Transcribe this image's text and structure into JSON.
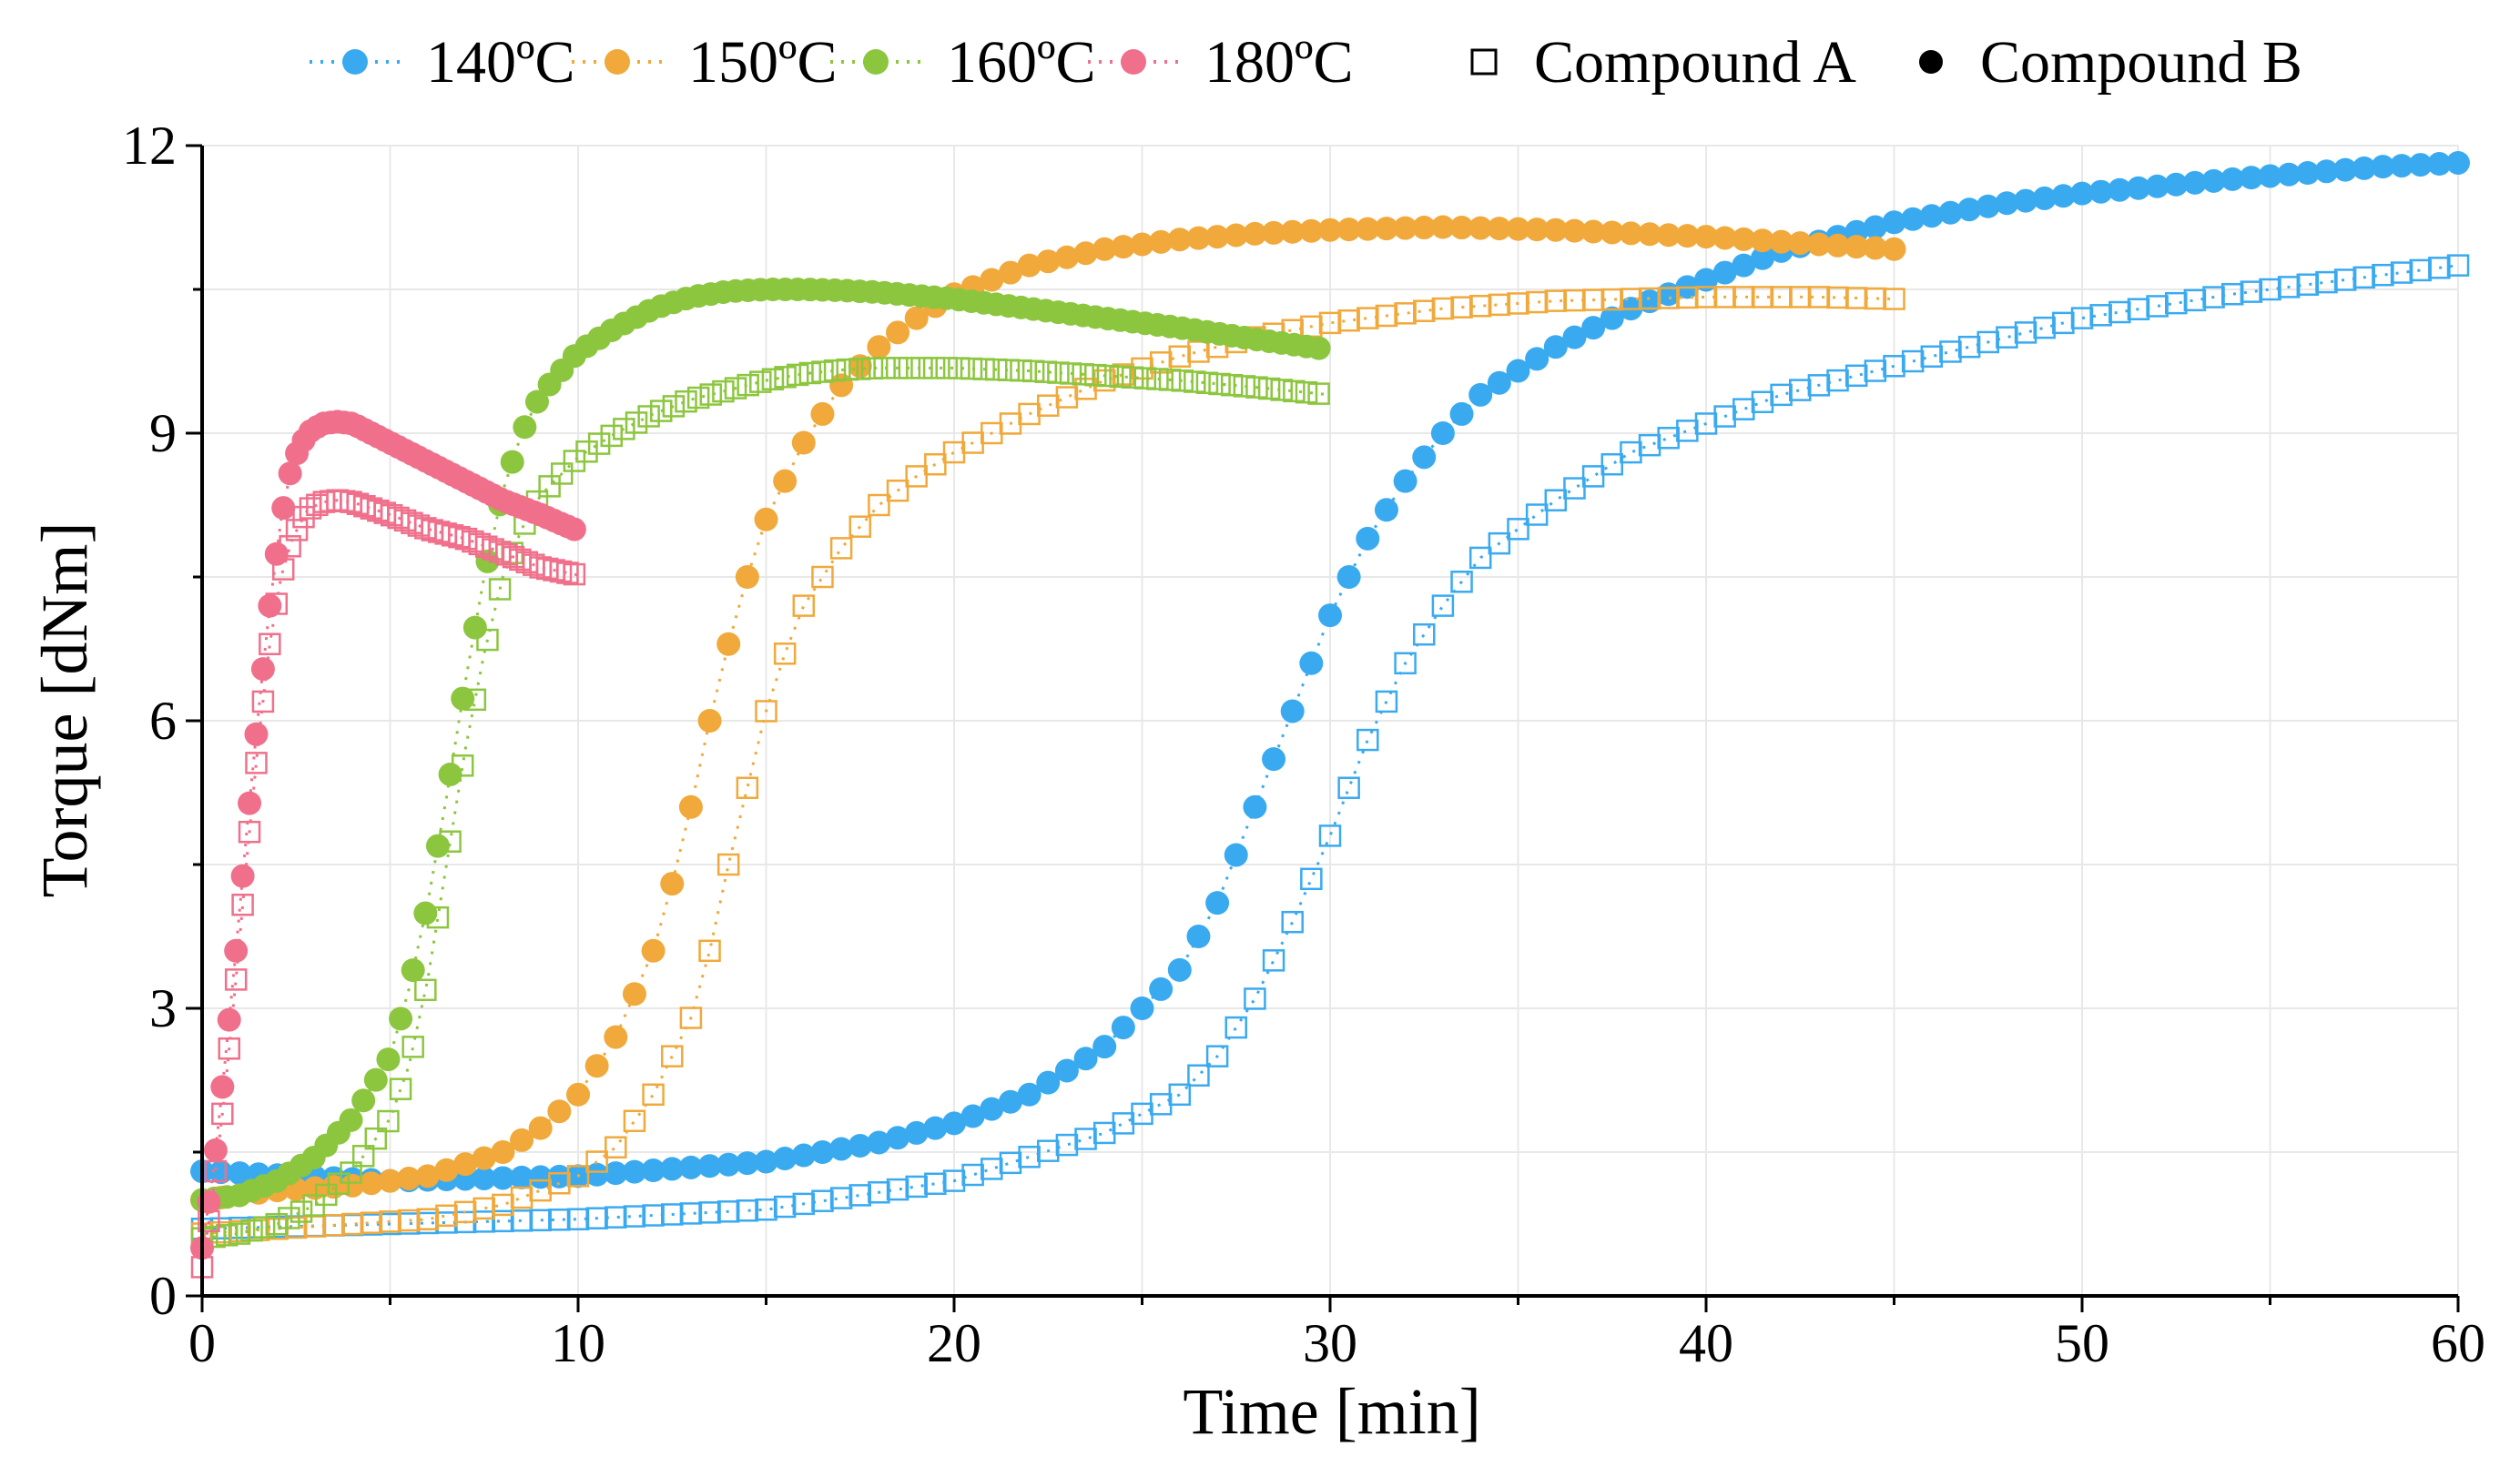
{
  "chart_data": {
    "type": "scatter",
    "title": "",
    "xlabel": "Time [min]",
    "ylabel": "Torque [dNm]",
    "xlim": [
      0,
      60
    ],
    "ylim": [
      0,
      12
    ],
    "xticks": [
      0,
      10,
      20,
      30,
      40,
      50,
      60
    ],
    "yticks": [
      0,
      3,
      6,
      9,
      12
    ],
    "xtick_labels": [
      "0",
      "10",
      "20",
      "30",
      "40",
      "50",
      "60"
    ],
    "ytick_labels": [
      "0",
      "3",
      "6",
      "9",
      "12"
    ],
    "grid": true,
    "legend_position": "top",
    "legend_temperatures": [
      {
        "label": "140ºC",
        "color": "#3aaaf0"
      },
      {
        "label": "150ºC",
        "color": "#f0a93a"
      },
      {
        "label": "160ºC",
        "color": "#8cc63f"
      },
      {
        "label": "180ºC",
        "color": "#f0708c"
      }
    ],
    "legend_markers": [
      {
        "label": "Compound A",
        "marker": "open-square"
      },
      {
        "label": "Compound B",
        "marker": "filled-circle"
      }
    ],
    "series": [
      {
        "name": "140ºC Compound B",
        "temperature": "140ºC",
        "compound": "Compound B",
        "color": "#3aaaf0",
        "marker": "circle",
        "x": [
          0,
          5,
          10,
          15,
          18,
          20,
          22,
          24,
          26,
          27,
          28,
          29,
          30,
          31,
          32,
          33,
          34,
          36,
          38,
          40,
          42,
          45,
          48,
          50,
          54,
          58,
          60
        ],
        "y": [
          1.3,
          1.2,
          1.25,
          1.4,
          1.6,
          1.8,
          2.1,
          2.6,
          3.4,
          4.1,
          5.1,
          6.1,
          7.1,
          7.9,
          8.5,
          9.0,
          9.4,
          9.9,
          10.3,
          10.6,
          10.9,
          11.2,
          11.4,
          11.5,
          11.65,
          11.78,
          11.82
        ]
      },
      {
        "name": "140ºC Compound A",
        "temperature": "140ºC",
        "compound": "Compound A",
        "color": "#3aaaf0",
        "marker": "square",
        "x": [
          0,
          5,
          10,
          15,
          20,
          24,
          26,
          27,
          28,
          29,
          30,
          31,
          32,
          33,
          34,
          36,
          38,
          40,
          42,
          45,
          48,
          50,
          54,
          58,
          60
        ],
        "y": [
          0.7,
          0.75,
          0.8,
          0.9,
          1.2,
          1.7,
          2.1,
          2.5,
          3.1,
          3.9,
          4.8,
          5.8,
          6.6,
          7.2,
          7.7,
          8.3,
          8.8,
          9.1,
          9.4,
          9.7,
          10.0,
          10.2,
          10.45,
          10.65,
          10.75
        ]
      },
      {
        "name": "150ºC Compound B",
        "temperature": "150ºC",
        "compound": "Compound B",
        "color": "#f0a93a",
        "marker": "circle",
        "x": [
          0,
          2,
          4,
          6,
          8,
          9,
          10,
          11,
          12,
          12.5,
          13,
          13.5,
          14,
          14.5,
          15,
          16,
          17,
          18,
          19,
          20,
          22,
          24,
          26,
          28,
          30,
          33,
          36,
          40,
          43,
          45
        ],
        "y": [
          1.0,
          1.1,
          1.15,
          1.25,
          1.5,
          1.75,
          2.1,
          2.7,
          3.6,
          4.3,
          5.1,
          6.0,
          6.8,
          7.5,
          8.1,
          8.9,
          9.5,
          9.9,
          10.2,
          10.45,
          10.75,
          10.92,
          11.02,
          11.08,
          11.12,
          11.15,
          11.12,
          11.05,
          10.97,
          10.92
        ]
      },
      {
        "name": "150ºC Compound A",
        "temperature": "150ºC",
        "compound": "Compound A",
        "color": "#f0a93a",
        "marker": "square",
        "x": [
          0,
          2,
          4,
          6,
          8,
          10,
          11,
          12,
          13,
          13.5,
          14,
          14.5,
          15,
          15.5,
          16,
          17,
          18,
          19,
          20,
          22,
          24,
          26,
          28,
          30,
          33,
          36,
          40,
          43,
          45
        ],
        "y": [
          0.65,
          0.7,
          0.75,
          0.8,
          0.95,
          1.25,
          1.55,
          2.1,
          2.9,
          3.6,
          4.5,
          5.3,
          6.1,
          6.7,
          7.2,
          7.8,
          8.25,
          8.55,
          8.8,
          9.2,
          9.55,
          9.8,
          10.0,
          10.15,
          10.3,
          10.38,
          10.42,
          10.42,
          10.4
        ]
      },
      {
        "name": "160ºC Compound B",
        "temperature": "160ºC",
        "compound": "Compound B",
        "color": "#8cc63f",
        "marker": "circle",
        "x": [
          0,
          1,
          2,
          3,
          4,
          5,
          5.5,
          6,
          6.5,
          7,
          7.5,
          8,
          8.5,
          9,
          10,
          11,
          12,
          13,
          14,
          15,
          16,
          17,
          18,
          20,
          22,
          24,
          26,
          28,
          30
        ],
        "y": [
          1.0,
          1.05,
          1.2,
          1.45,
          1.85,
          2.5,
          3.2,
          4.1,
          5.2,
          6.4,
          7.5,
          8.4,
          9.0,
          9.4,
          9.85,
          10.1,
          10.3,
          10.42,
          10.48,
          10.5,
          10.5,
          10.49,
          10.47,
          10.4,
          10.3,
          10.2,
          10.1,
          9.98,
          9.87
        ]
      },
      {
        "name": "160ºC Compound A",
        "temperature": "160ºC",
        "compound": "Compound A",
        "color": "#8cc63f",
        "marker": "square",
        "x": [
          0,
          1,
          2,
          3,
          4,
          5,
          5.5,
          6,
          6.5,
          7,
          7.5,
          8,
          8.5,
          9,
          10,
          11,
          12,
          13,
          14,
          15,
          16,
          17,
          18,
          20,
          22,
          24,
          26,
          28,
          30
        ],
        "y": [
          0.6,
          0.65,
          0.75,
          0.95,
          1.3,
          1.85,
          2.4,
          3.3,
          4.5,
          5.7,
          6.7,
          7.5,
          8.0,
          8.35,
          8.75,
          9.0,
          9.2,
          9.35,
          9.45,
          9.55,
          9.62,
          9.66,
          9.68,
          9.68,
          9.65,
          9.6,
          9.55,
          9.48,
          9.4
        ]
      },
      {
        "name": "180ºC Compound B",
        "temperature": "180ºC",
        "compound": "Compound B",
        "color": "#f0708c",
        "marker": "circle",
        "x": [
          0,
          0.3,
          0.6,
          0.9,
          1.2,
          1.5,
          1.8,
          2.1,
          2.4,
          2.8,
          3.2,
          3.6,
          4,
          5,
          6,
          7,
          8,
          9,
          10
        ],
        "y": [
          0.5,
          1.3,
          2.4,
          3.6,
          4.9,
          6.1,
          7.2,
          8.1,
          8.7,
          9.0,
          9.1,
          9.12,
          9.1,
          8.9,
          8.7,
          8.5,
          8.3,
          8.15,
          7.98
        ]
      },
      {
        "name": "180ºC Compound A",
        "temperature": "180ºC",
        "compound": "Compound A",
        "color": "#f0708c",
        "marker": "square",
        "x": [
          0,
          0.3,
          0.6,
          0.9,
          1.2,
          1.5,
          1.8,
          2.1,
          2.4,
          2.8,
          3.2,
          3.6,
          4,
          5,
          6,
          7,
          8,
          9,
          10
        ],
        "y": [
          0.3,
          1.1,
          2.1,
          3.3,
          4.6,
          5.8,
          6.8,
          7.5,
          7.9,
          8.2,
          8.28,
          8.3,
          8.28,
          8.15,
          8.0,
          7.9,
          7.75,
          7.6,
          7.52
        ]
      }
    ]
  }
}
